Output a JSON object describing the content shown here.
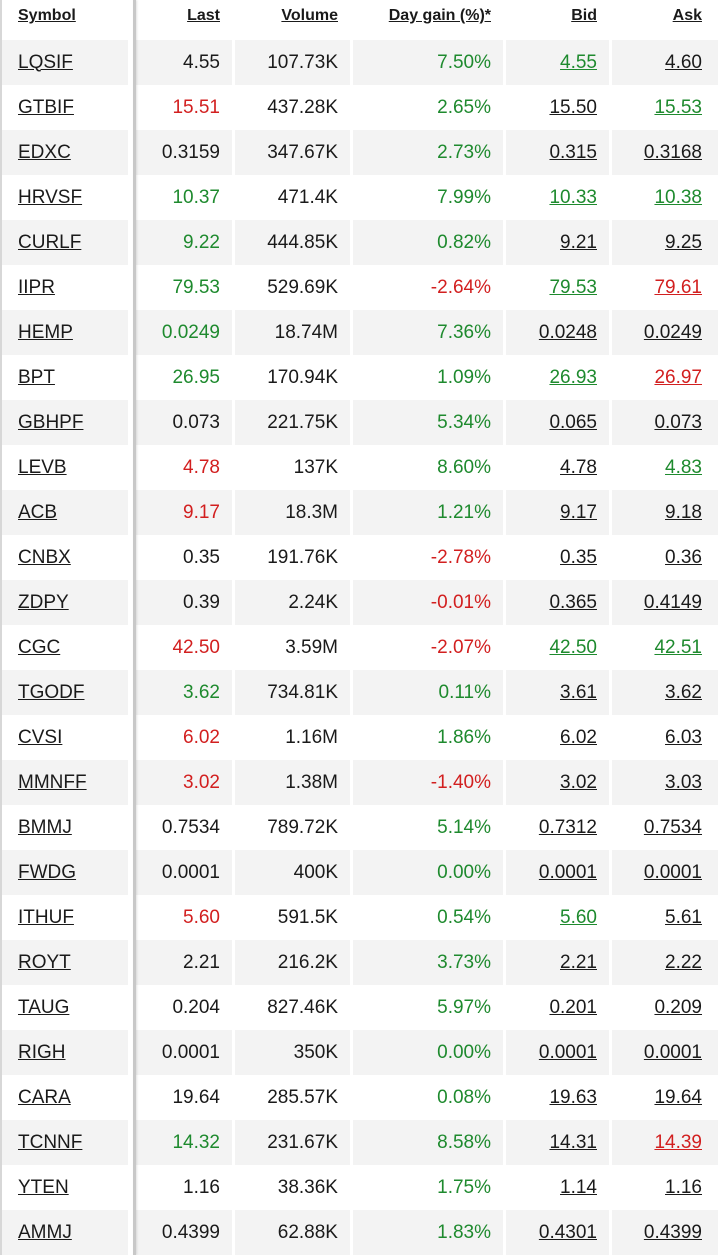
{
  "colors": {
    "up": "#1e8a2e",
    "down": "#d21f1f",
    "neutral": "#1a1a1a",
    "row_shade": "#f3f3f3"
  },
  "header": {
    "symbol": "Symbol",
    "last": "Last",
    "volume": "Volume",
    "day_gain": "Day gain (%)*",
    "bid": "Bid",
    "ask": "Ask"
  },
  "rows": [
    {
      "symbol": "LQSIF",
      "last": "4.55",
      "last_dir": "neutral",
      "volume": "107.73K",
      "gain": "7.50%",
      "gain_dir": "up",
      "bid": "4.55",
      "bid_dir": "up",
      "ask": "4.60",
      "ask_dir": "neutral"
    },
    {
      "symbol": "GTBIF",
      "last": "15.51",
      "last_dir": "down",
      "volume": "437.28K",
      "gain": "2.65%",
      "gain_dir": "up",
      "bid": "15.50",
      "bid_dir": "neutral",
      "ask": "15.53",
      "ask_dir": "up"
    },
    {
      "symbol": "EDXC",
      "last": "0.3159",
      "last_dir": "neutral",
      "volume": "347.67K",
      "gain": "2.73%",
      "gain_dir": "up",
      "bid": "0.315",
      "bid_dir": "neutral",
      "ask": "0.3168",
      "ask_dir": "neutral"
    },
    {
      "symbol": "HRVSF",
      "last": "10.37",
      "last_dir": "up",
      "volume": "471.4K",
      "gain": "7.99%",
      "gain_dir": "up",
      "bid": "10.33",
      "bid_dir": "up",
      "ask": "10.38",
      "ask_dir": "up"
    },
    {
      "symbol": "CURLF",
      "last": "9.22",
      "last_dir": "up",
      "volume": "444.85K",
      "gain": "0.82%",
      "gain_dir": "up",
      "bid": "9.21",
      "bid_dir": "neutral",
      "ask": "9.25",
      "ask_dir": "neutral"
    },
    {
      "symbol": "IIPR",
      "last": "79.53",
      "last_dir": "up",
      "volume": "529.69K",
      "gain": "-2.64%",
      "gain_dir": "down",
      "bid": "79.53",
      "bid_dir": "up",
      "ask": "79.61",
      "ask_dir": "down"
    },
    {
      "symbol": "HEMP",
      "last": "0.0249",
      "last_dir": "up",
      "volume": "18.74M",
      "gain": "7.36%",
      "gain_dir": "up",
      "bid": "0.0248",
      "bid_dir": "neutral",
      "ask": "0.0249",
      "ask_dir": "neutral"
    },
    {
      "symbol": "BPT",
      "last": "26.95",
      "last_dir": "up",
      "volume": "170.94K",
      "gain": "1.09%",
      "gain_dir": "up",
      "bid": "26.93",
      "bid_dir": "up",
      "ask": "26.97",
      "ask_dir": "down"
    },
    {
      "symbol": "GBHPF",
      "last": "0.073",
      "last_dir": "neutral",
      "volume": "221.75K",
      "gain": "5.34%",
      "gain_dir": "up",
      "bid": "0.065",
      "bid_dir": "neutral",
      "ask": "0.073",
      "ask_dir": "neutral"
    },
    {
      "symbol": "LEVB",
      "last": "4.78",
      "last_dir": "down",
      "volume": "137K",
      "gain": "8.60%",
      "gain_dir": "up",
      "bid": "4.78",
      "bid_dir": "neutral",
      "ask": "4.83",
      "ask_dir": "up"
    },
    {
      "symbol": "ACB",
      "last": "9.17",
      "last_dir": "down",
      "volume": "18.3M",
      "gain": "1.21%",
      "gain_dir": "up",
      "bid": "9.17",
      "bid_dir": "neutral",
      "ask": "9.18",
      "ask_dir": "neutral"
    },
    {
      "symbol": "CNBX",
      "last": "0.35",
      "last_dir": "neutral",
      "volume": "191.76K",
      "gain": "-2.78%",
      "gain_dir": "down",
      "bid": "0.35",
      "bid_dir": "neutral",
      "ask": "0.36",
      "ask_dir": "neutral"
    },
    {
      "symbol": "ZDPY",
      "last": "0.39",
      "last_dir": "neutral",
      "volume": "2.24K",
      "gain": "-0.01%",
      "gain_dir": "down",
      "bid": "0.365",
      "bid_dir": "neutral",
      "ask": "0.4149",
      "ask_dir": "neutral"
    },
    {
      "symbol": "CGC",
      "last": "42.50",
      "last_dir": "down",
      "volume": "3.59M",
      "gain": "-2.07%",
      "gain_dir": "down",
      "bid": "42.50",
      "bid_dir": "up",
      "ask": "42.51",
      "ask_dir": "up"
    },
    {
      "symbol": "TGODF",
      "last": "3.62",
      "last_dir": "up",
      "volume": "734.81K",
      "gain": "0.11%",
      "gain_dir": "up",
      "bid": "3.61",
      "bid_dir": "neutral",
      "ask": "3.62",
      "ask_dir": "neutral"
    },
    {
      "symbol": "CVSI",
      "last": "6.02",
      "last_dir": "down",
      "volume": "1.16M",
      "gain": "1.86%",
      "gain_dir": "up",
      "bid": "6.02",
      "bid_dir": "neutral",
      "ask": "6.03",
      "ask_dir": "neutral"
    },
    {
      "symbol": "MMNFF",
      "last": "3.02",
      "last_dir": "down",
      "volume": "1.38M",
      "gain": "-1.40%",
      "gain_dir": "down",
      "bid": "3.02",
      "bid_dir": "neutral",
      "ask": "3.03",
      "ask_dir": "neutral"
    },
    {
      "symbol": "BMMJ",
      "last": "0.7534",
      "last_dir": "neutral",
      "volume": "789.72K",
      "gain": "5.14%",
      "gain_dir": "up",
      "bid": "0.7312",
      "bid_dir": "neutral",
      "ask": "0.7534",
      "ask_dir": "neutral"
    },
    {
      "symbol": "FWDG",
      "last": "0.0001",
      "last_dir": "neutral",
      "volume": "400K",
      "gain": "0.00%",
      "gain_dir": "up",
      "bid": "0.0001",
      "bid_dir": "neutral",
      "ask": "0.0001",
      "ask_dir": "neutral"
    },
    {
      "symbol": "ITHUF",
      "last": "5.60",
      "last_dir": "down",
      "volume": "591.5K",
      "gain": "0.54%",
      "gain_dir": "up",
      "bid": "5.60",
      "bid_dir": "up",
      "ask": "5.61",
      "ask_dir": "neutral"
    },
    {
      "symbol": "ROYT",
      "last": "2.21",
      "last_dir": "neutral",
      "volume": "216.2K",
      "gain": "3.73%",
      "gain_dir": "up",
      "bid": "2.21",
      "bid_dir": "neutral",
      "ask": "2.22",
      "ask_dir": "neutral"
    },
    {
      "symbol": "TAUG",
      "last": "0.204",
      "last_dir": "neutral",
      "volume": "827.46K",
      "gain": "5.97%",
      "gain_dir": "up",
      "bid": "0.201",
      "bid_dir": "neutral",
      "ask": "0.209",
      "ask_dir": "neutral"
    },
    {
      "symbol": "RIGH",
      "last": "0.0001",
      "last_dir": "neutral",
      "volume": "350K",
      "gain": "0.00%",
      "gain_dir": "up",
      "bid": "0.0001",
      "bid_dir": "neutral",
      "ask": "0.0001",
      "ask_dir": "neutral"
    },
    {
      "symbol": "CARA",
      "last": "19.64",
      "last_dir": "neutral",
      "volume": "285.57K",
      "gain": "0.08%",
      "gain_dir": "up",
      "bid": "19.63",
      "bid_dir": "neutral",
      "ask": "19.64",
      "ask_dir": "neutral"
    },
    {
      "symbol": "TCNNF",
      "last": "14.32",
      "last_dir": "up",
      "volume": "231.67K",
      "gain": "8.58%",
      "gain_dir": "up",
      "bid": "14.31",
      "bid_dir": "neutral",
      "ask": "14.39",
      "ask_dir": "down"
    },
    {
      "symbol": "YTEN",
      "last": "1.16",
      "last_dir": "neutral",
      "volume": "38.36K",
      "gain": "1.75%",
      "gain_dir": "up",
      "bid": "1.14",
      "bid_dir": "neutral",
      "ask": "1.16",
      "ask_dir": "neutral"
    },
    {
      "symbol": "AMMJ",
      "last": "0.4399",
      "last_dir": "neutral",
      "volume": "62.88K",
      "gain": "1.83%",
      "gain_dir": "up",
      "bid": "0.4301",
      "bid_dir": "neutral",
      "ask": "0.4399",
      "ask_dir": "neutral"
    }
  ]
}
